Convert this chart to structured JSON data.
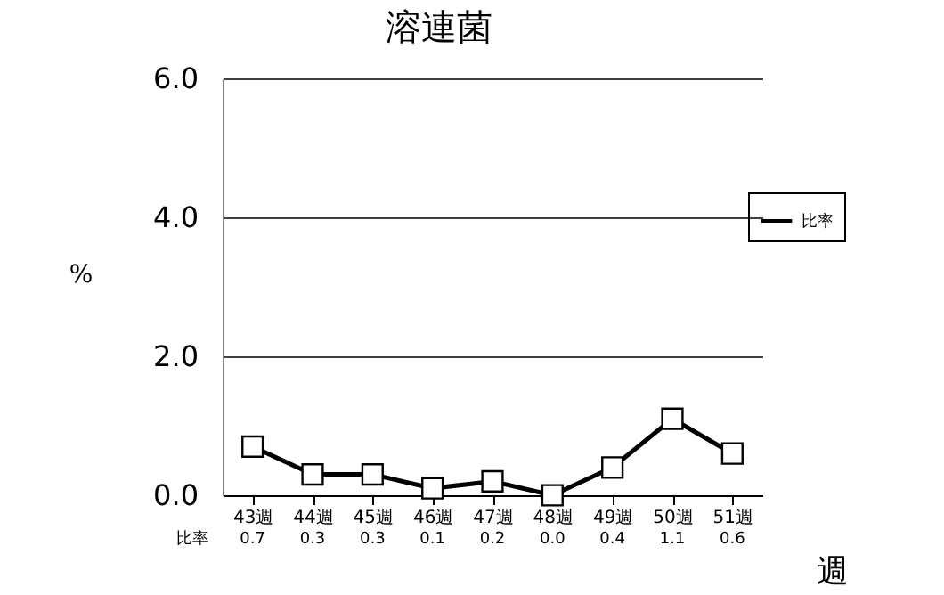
{
  "chart_data": {
    "type": "line",
    "title": "溶連菌",
    "ylabel": "%",
    "xlabel": "週",
    "categories": [
      "43週",
      "44週",
      "45週",
      "46週",
      "47週",
      "48週",
      "49週",
      "50週",
      "51週"
    ],
    "series": [
      {
        "name": "比率",
        "color": "#000000",
        "values": [
          0.7,
          0.3,
          0.3,
          0.1,
          0.2,
          0.0,
          0.4,
          1.1,
          0.6
        ],
        "value_labels": [
          "0.7",
          "0.3",
          "0.3",
          "0.1",
          "0.2",
          "0.0",
          "0.4",
          "1.1",
          "0.6"
        ]
      }
    ],
    "ylim": [
      0,
      6
    ],
    "yticks": [
      {
        "value": 0,
        "label": "0.0"
      },
      {
        "value": 2,
        "label": "2.0"
      },
      {
        "value": 4,
        "label": "4.0"
      },
      {
        "value": 6,
        "label": "6.0"
      }
    ],
    "grid": "y",
    "legend": "right",
    "marker": "square",
    "line_style": "solid"
  }
}
